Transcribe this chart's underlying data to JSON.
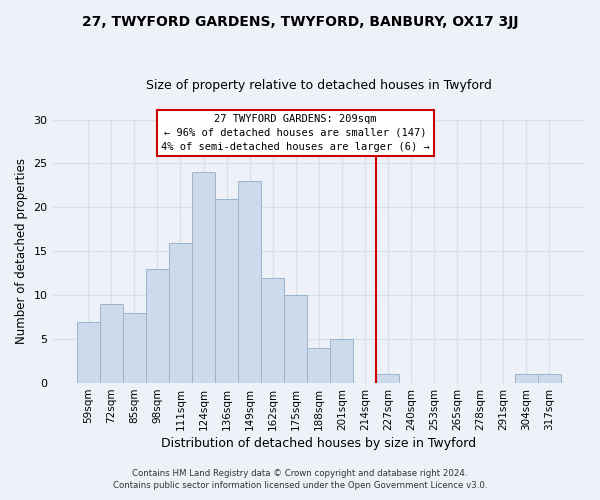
{
  "title1": "27, TWYFORD GARDENS, TWYFORD, BANBURY, OX17 3JJ",
  "title2": "Size of property relative to detached houses in Twyford",
  "xlabel": "Distribution of detached houses by size in Twyford",
  "ylabel": "Number of detached properties",
  "categories": [
    "59sqm",
    "72sqm",
    "85sqm",
    "98sqm",
    "111sqm",
    "124sqm",
    "136sqm",
    "149sqm",
    "162sqm",
    "175sqm",
    "188sqm",
    "201sqm",
    "214sqm",
    "227sqm",
    "240sqm",
    "253sqm",
    "265sqm",
    "278sqm",
    "291sqm",
    "304sqm",
    "317sqm"
  ],
  "values": [
    7,
    9,
    8,
    13,
    16,
    24,
    21,
    23,
    12,
    10,
    4,
    5,
    0,
    1,
    0,
    0,
    0,
    0,
    0,
    1,
    1
  ],
  "bar_color": "#ccdaeb",
  "bar_edge_color": "#9ab4cc",
  "vline_color": "#cc0000",
  "ylim": [
    0,
    30
  ],
  "yticks": [
    0,
    5,
    10,
    15,
    20,
    25,
    30
  ],
  "annotation_title": "27 TWYFORD GARDENS: 209sqm",
  "annotation_line1": "← 96% of detached houses are smaller (147)",
  "annotation_line2": "4% of semi-detached houses are larger (6) →",
  "annotation_box_color": "#ffffff",
  "annotation_box_edge": "#cc0000",
  "footer1": "Contains HM Land Registry data © Crown copyright and database right 2024.",
  "footer2": "Contains public sector information licensed under the Open Government Licence v3.0.",
  "background_color": "#eef2f8",
  "grid_color": "#d8e0ec",
  "title1_fontsize": 10,
  "title2_fontsize": 9
}
